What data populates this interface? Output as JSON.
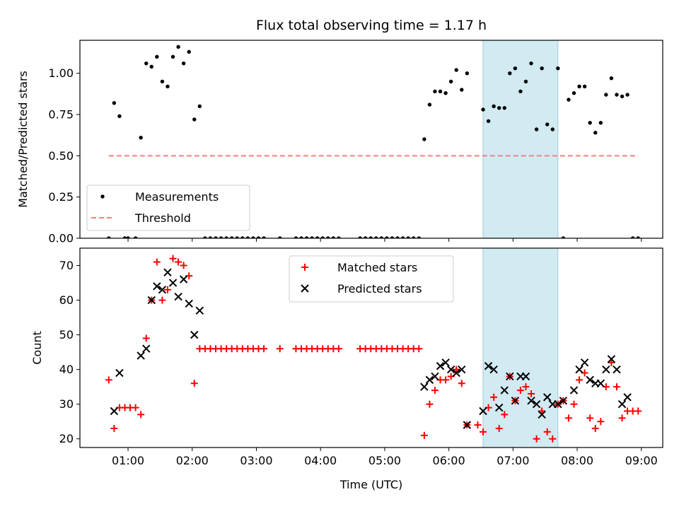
{
  "chart_data": [
    {
      "type": "scatter",
      "title": "Flux total observing time = 1.17 h",
      "xlabel": "",
      "ylabel": "Matched/Predicted stars",
      "xlim": [
        "00:15",
        "09:20"
      ],
      "ylim": [
        0,
        1.2
      ],
      "yticks": [
        "0.00",
        "0.25",
        "0.50",
        "0.75",
        "1.00"
      ],
      "x_tick_labels": [
        "01:00",
        "02:00",
        "03:00",
        "04:00",
        "05:00",
        "06:00",
        "07:00",
        "08:00",
        "09:00"
      ],
      "show_x_tick_labels": false,
      "grid": false,
      "legend_placement": "lower-left",
      "highlight_span": [
        "06:32",
        "07:42"
      ],
      "highlight_color": "#add8e6",
      "series": [
        {
          "name": "Measurements",
          "color": "#000000",
          "marker": "dot",
          "points": [
            [
              "00:42",
              0.0
            ],
            [
              "00:47",
              0.82
            ],
            [
              "00:52",
              0.74
            ],
            [
              "00:57",
              0.0
            ],
            [
              "01:00",
              0.0
            ],
            [
              "01:07",
              0.0
            ],
            [
              "01:12",
              0.61
            ],
            [
              "01:17",
              1.06
            ],
            [
              "01:22",
              1.04
            ],
            [
              "01:27",
              1.1
            ],
            [
              "01:32",
              0.95
            ],
            [
              "01:37",
              0.92
            ],
            [
              "01:42",
              1.1
            ],
            [
              "01:47",
              1.16
            ],
            [
              "01:52",
              1.06
            ],
            [
              "01:57",
              1.13
            ],
            [
              "02:02",
              0.72
            ],
            [
              "02:07",
              0.8
            ],
            [
              "02:12",
              0.0
            ],
            [
              "02:17",
              0.0
            ],
            [
              "02:22",
              0.0
            ],
            [
              "02:27",
              0.0
            ],
            [
              "02:32",
              0.0
            ],
            [
              "02:37",
              0.0
            ],
            [
              "02:42",
              0.0
            ],
            [
              "02:47",
              0.0
            ],
            [
              "02:52",
              0.0
            ],
            [
              "02:57",
              0.0
            ],
            [
              "03:02",
              0.0
            ],
            [
              "03:07",
              0.0
            ],
            [
              "03:22",
              0.0
            ],
            [
              "03:37",
              0.0
            ],
            [
              "03:42",
              0.0
            ],
            [
              "03:47",
              0.0
            ],
            [
              "03:52",
              0.0
            ],
            [
              "03:57",
              0.0
            ],
            [
              "04:02",
              0.0
            ],
            [
              "04:07",
              0.0
            ],
            [
              "04:12",
              0.0
            ],
            [
              "04:17",
              0.0
            ],
            [
              "04:37",
              0.0
            ],
            [
              "04:42",
              0.0
            ],
            [
              "04:47",
              0.0
            ],
            [
              "04:52",
              0.0
            ],
            [
              "04:57",
              0.0
            ],
            [
              "05:02",
              0.0
            ],
            [
              "05:07",
              0.0
            ],
            [
              "05:12",
              0.0
            ],
            [
              "05:17",
              0.0
            ],
            [
              "05:22",
              0.0
            ],
            [
              "05:27",
              0.0
            ],
            [
              "05:32",
              0.0
            ],
            [
              "05:37",
              0.6
            ],
            [
              "05:42",
              0.81
            ],
            [
              "05:47",
              0.89
            ],
            [
              "05:52",
              0.89
            ],
            [
              "05:57",
              0.88
            ],
            [
              "06:02",
              0.95
            ],
            [
              "06:07",
              1.02
            ],
            [
              "06:12",
              0.9
            ],
            [
              "06:17",
              1.0
            ],
            [
              "06:32",
              0.78
            ],
            [
              "06:37",
              0.71
            ],
            [
              "06:42",
              0.8
            ],
            [
              "06:47",
              0.79
            ],
            [
              "06:52",
              0.79
            ],
            [
              "06:57",
              1.0
            ],
            [
              "07:02",
              1.03
            ],
            [
              "07:07",
              0.89
            ],
            [
              "07:12",
              0.95
            ],
            [
              "07:17",
              1.06
            ],
            [
              "07:22",
              0.66
            ],
            [
              "07:27",
              1.03
            ],
            [
              "07:32",
              0.69
            ],
            [
              "07:37",
              0.66
            ],
            [
              "07:42",
              1.03
            ],
            [
              "07:47",
              0.0
            ],
            [
              "07:52",
              0.84
            ],
            [
              "07:57",
              0.88
            ],
            [
              "08:02",
              0.92
            ],
            [
              "08:07",
              0.92
            ],
            [
              "08:12",
              0.7
            ],
            [
              "08:17",
              0.64
            ],
            [
              "08:22",
              0.7
            ],
            [
              "08:27",
              0.87
            ],
            [
              "08:32",
              0.97
            ],
            [
              "08:37",
              0.87
            ],
            [
              "08:42",
              0.86
            ],
            [
              "08:47",
              0.87
            ],
            [
              "08:52",
              0.0
            ],
            [
              "08:57",
              0.0
            ]
          ]
        },
        {
          "name": "Threshold",
          "color": "#f08080",
          "style": "dashed",
          "x": [
            "00:42",
            "08:57"
          ],
          "y": [
            0.5,
            0.5
          ]
        }
      ]
    },
    {
      "type": "scatter",
      "title": "",
      "xlabel": "Time (UTC)",
      "ylabel": "Count",
      "xlim": [
        "00:15",
        "09:20"
      ],
      "ylim": [
        17.5,
        75
      ],
      "yticks": [
        "20",
        "30",
        "40",
        "50",
        "60",
        "70"
      ],
      "x_tick_labels": [
        "01:00",
        "02:00",
        "03:00",
        "04:00",
        "05:00",
        "06:00",
        "07:00",
        "08:00",
        "09:00"
      ],
      "grid": false,
      "legend_placement": "upper-center",
      "highlight_span": [
        "06:32",
        "07:42"
      ],
      "highlight_color": "#add8e6",
      "series": [
        {
          "name": "Matched stars",
          "color": "#ff0000",
          "marker": "plus",
          "points": [
            [
              "00:42",
              37
            ],
            [
              "00:47",
              23
            ],
            [
              "00:52",
              29
            ],
            [
              "00:57",
              29
            ],
            [
              "01:02",
              29
            ],
            [
              "01:07",
              29
            ],
            [
              "01:12",
              27
            ],
            [
              "01:17",
              49
            ],
            [
              "01:22",
              60
            ],
            [
              "01:27",
              71
            ],
            [
              "01:32",
              60
            ],
            [
              "01:37",
              63
            ],
            [
              "01:42",
              72
            ],
            [
              "01:47",
              71
            ],
            [
              "01:52",
              70
            ],
            [
              "01:57",
              67
            ],
            [
              "02:02",
              36
            ],
            [
              "02:07",
              46
            ],
            [
              "02:12",
              46
            ],
            [
              "02:17",
              46
            ],
            [
              "02:22",
              46
            ],
            [
              "02:27",
              46
            ],
            [
              "02:32",
              46
            ],
            [
              "02:37",
              46
            ],
            [
              "02:42",
              46
            ],
            [
              "02:47",
              46
            ],
            [
              "02:52",
              46
            ],
            [
              "02:57",
              46
            ],
            [
              "03:02",
              46
            ],
            [
              "03:07",
              46
            ],
            [
              "03:22",
              46
            ],
            [
              "03:37",
              46
            ],
            [
              "03:42",
              46
            ],
            [
              "03:47",
              46
            ],
            [
              "03:52",
              46
            ],
            [
              "03:57",
              46
            ],
            [
              "04:02",
              46
            ],
            [
              "04:07",
              46
            ],
            [
              "04:12",
              46
            ],
            [
              "04:17",
              46
            ],
            [
              "04:37",
              46
            ],
            [
              "04:42",
              46
            ],
            [
              "04:47",
              46
            ],
            [
              "04:52",
              46
            ],
            [
              "04:57",
              46
            ],
            [
              "05:02",
              46
            ],
            [
              "05:07",
              46
            ],
            [
              "05:12",
              46
            ],
            [
              "05:17",
              46
            ],
            [
              "05:22",
              46
            ],
            [
              "05:27",
              46
            ],
            [
              "05:32",
              46
            ],
            [
              "05:37",
              21
            ],
            [
              "05:42",
              30
            ],
            [
              "05:47",
              34
            ],
            [
              "05:52",
              37
            ],
            [
              "05:57",
              37
            ],
            [
              "06:02",
              38
            ],
            [
              "06:07",
              40
            ],
            [
              "06:12",
              36
            ],
            [
              "06:17",
              24
            ],
            [
              "06:27",
              24
            ],
            [
              "06:32",
              22
            ],
            [
              "06:37",
              29
            ],
            [
              "06:42",
              32
            ],
            [
              "06:47",
              23
            ],
            [
              "06:52",
              27
            ],
            [
              "06:57",
              38
            ],
            [
              "07:02",
              31
            ],
            [
              "07:07",
              34
            ],
            [
              "07:12",
              35
            ],
            [
              "07:17",
              33
            ],
            [
              "07:22",
              20
            ],
            [
              "07:27",
              28
            ],
            [
              "07:32",
              22
            ],
            [
              "07:37",
              20
            ],
            [
              "07:42",
              30
            ],
            [
              "07:47",
              31
            ],
            [
              "07:52",
              26
            ],
            [
              "07:57",
              30
            ],
            [
              "08:02",
              37
            ],
            [
              "08:07",
              39
            ],
            [
              "08:12",
              26
            ],
            [
              "08:17",
              23
            ],
            [
              "08:22",
              25
            ],
            [
              "08:27",
              35
            ],
            [
              "08:32",
              42
            ],
            [
              "08:37",
              35
            ],
            [
              "08:42",
              26
            ],
            [
              "08:47",
              28
            ],
            [
              "08:52",
              28
            ],
            [
              "08:57",
              28
            ]
          ]
        },
        {
          "name": "Predicted stars",
          "color": "#000000",
          "marker": "x",
          "points": [
            [
              "00:47",
              28
            ],
            [
              "00:52",
              39
            ],
            [
              "01:12",
              44
            ],
            [
              "01:17",
              46
            ],
            [
              "01:22",
              60
            ],
            [
              "01:27",
              64
            ],
            [
              "01:32",
              63
            ],
            [
              "01:37",
              68
            ],
            [
              "01:42",
              65
            ],
            [
              "01:47",
              61
            ],
            [
              "01:52",
              66
            ],
            [
              "01:57",
              59
            ],
            [
              "02:02",
              50
            ],
            [
              "02:07",
              57
            ],
            [
              "05:37",
              35
            ],
            [
              "05:42",
              37
            ],
            [
              "05:47",
              38
            ],
            [
              "05:52",
              41
            ],
            [
              "05:57",
              42
            ],
            [
              "06:02",
              40
            ],
            [
              "06:07",
              39
            ],
            [
              "06:12",
              40
            ],
            [
              "06:17",
              24
            ],
            [
              "06:32",
              28
            ],
            [
              "06:37",
              41
            ],
            [
              "06:42",
              40
            ],
            [
              "06:47",
              29
            ],
            [
              "06:52",
              34
            ],
            [
              "06:57",
              38
            ],
            [
              "07:02",
              31
            ],
            [
              "07:07",
              38
            ],
            [
              "07:12",
              38
            ],
            [
              "07:17",
              31
            ],
            [
              "07:22",
              30
            ],
            [
              "07:27",
              27
            ],
            [
              "07:32",
              32
            ],
            [
              "07:37",
              30
            ],
            [
              "07:42",
              30
            ],
            [
              "07:47",
              31
            ],
            [
              "07:57",
              34
            ],
            [
              "08:02",
              40
            ],
            [
              "08:07",
              42
            ],
            [
              "08:12",
              37
            ],
            [
              "08:17",
              36
            ],
            [
              "08:22",
              36
            ],
            [
              "08:27",
              40
            ],
            [
              "08:32",
              43
            ],
            [
              "08:37",
              40
            ],
            [
              "08:42",
              30
            ],
            [
              "08:47",
              32
            ]
          ]
        }
      ]
    }
  ]
}
